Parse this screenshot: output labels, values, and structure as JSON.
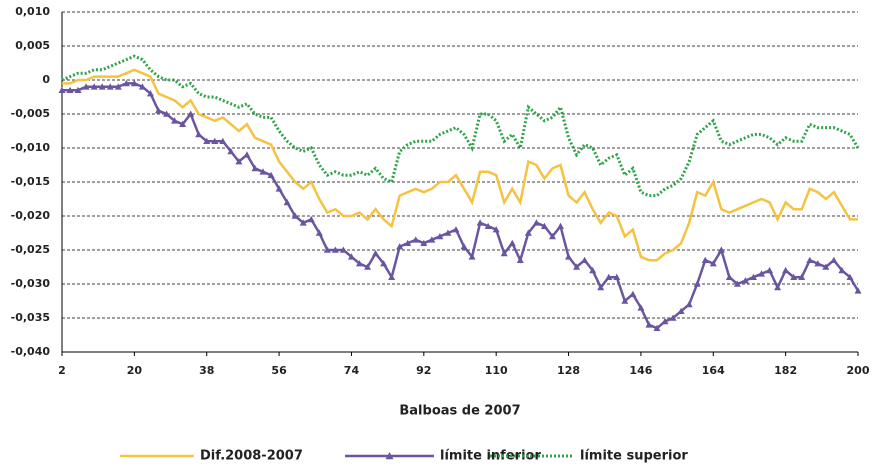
{
  "chart_data": {
    "type": "line",
    "xlabel": "Balboas de 2007",
    "x": [
      2,
      4,
      6,
      8,
      10,
      12,
      14,
      16,
      18,
      20,
      22,
      24,
      26,
      28,
      30,
      32,
      34,
      36,
      38,
      40,
      42,
      44,
      46,
      48,
      50,
      52,
      54,
      56,
      58,
      60,
      62,
      64,
      66,
      68,
      70,
      72,
      74,
      76,
      78,
      80,
      82,
      84,
      86,
      88,
      90,
      92,
      94,
      96,
      98,
      100,
      102,
      104,
      106,
      108,
      110,
      112,
      114,
      116,
      118,
      120,
      122,
      124,
      126,
      128,
      130,
      132,
      134,
      136,
      138,
      140,
      142,
      144,
      146,
      148,
      150,
      152,
      154,
      156,
      158,
      160,
      162,
      164,
      166,
      168,
      170,
      172,
      174,
      176,
      178,
      180,
      182,
      184,
      186,
      188,
      190,
      192,
      194,
      196,
      198,
      200
    ],
    "series": [
      {
        "name": "Dif.2008-2007",
        "color": "#f5c242",
        "style": "solid",
        "marker": "none",
        "values": [
          -0.0005,
          -0.0005,
          0,
          0,
          0.0005,
          0.0005,
          0.0005,
          0.0005,
          0.001,
          0.0015,
          0.001,
          0.0005,
          -0.002,
          -0.0025,
          -0.003,
          -0.004,
          -0.003,
          -0.005,
          -0.0055,
          -0.006,
          -0.0055,
          -0.0065,
          -0.0075,
          -0.0065,
          -0.0085,
          -0.009,
          -0.0095,
          -0.012,
          -0.0135,
          -0.015,
          -0.016,
          -0.015,
          -0.0175,
          -0.0195,
          -0.019,
          -0.02,
          -0.02,
          -0.0195,
          -0.0205,
          -0.019,
          -0.0205,
          -0.0215,
          -0.017,
          -0.0165,
          -0.016,
          -0.0165,
          -0.016,
          -0.015,
          -0.015,
          -0.014,
          -0.016,
          -0.018,
          -0.0135,
          -0.0135,
          -0.014,
          -0.018,
          -0.016,
          -0.018,
          -0.012,
          -0.0125,
          -0.0145,
          -0.013,
          -0.0125,
          -0.017,
          -0.018,
          -0.0165,
          -0.019,
          -0.021,
          -0.0195,
          -0.02,
          -0.023,
          -0.022,
          -0.026,
          -0.0265,
          -0.0265,
          -0.0255,
          -0.025,
          -0.024,
          -0.021,
          -0.0165,
          -0.017,
          -0.015,
          -0.019,
          -0.0195,
          -0.019,
          -0.0185,
          -0.018,
          -0.0175,
          -0.018,
          -0.0205,
          -0.018,
          -0.019,
          -0.019,
          -0.016,
          -0.0165,
          -0.0175,
          -0.0165,
          -0.0185,
          -0.0205,
          -0.0205
        ]
      },
      {
        "name": "límite inferior",
        "color": "#6a55a0",
        "style": "solid",
        "marker": "triangle",
        "values": [
          -0.0015,
          -0.0015,
          -0.0015,
          -0.001,
          -0.001,
          -0.001,
          -0.001,
          -0.001,
          -0.0005,
          -0.0005,
          -0.001,
          -0.002,
          -0.0045,
          -0.005,
          -0.006,
          -0.0065,
          -0.005,
          -0.008,
          -0.009,
          -0.009,
          -0.009,
          -0.0105,
          -0.012,
          -0.011,
          -0.013,
          -0.0135,
          -0.014,
          -0.016,
          -0.018,
          -0.02,
          -0.021,
          -0.0205,
          -0.0225,
          -0.025,
          -0.025,
          -0.025,
          -0.026,
          -0.027,
          -0.0275,
          -0.0255,
          -0.027,
          -0.029,
          -0.0245,
          -0.024,
          -0.0235,
          -0.024,
          -0.0235,
          -0.023,
          -0.0225,
          -0.022,
          -0.0245,
          -0.026,
          -0.021,
          -0.0215,
          -0.022,
          -0.0255,
          -0.024,
          -0.0265,
          -0.0225,
          -0.021,
          -0.0215,
          -0.023,
          -0.0215,
          -0.026,
          -0.0275,
          -0.0265,
          -0.028,
          -0.0305,
          -0.029,
          -0.029,
          -0.0325,
          -0.0315,
          -0.0335,
          -0.036,
          -0.0365,
          -0.0355,
          -0.035,
          -0.034,
          -0.033,
          -0.03,
          -0.0265,
          -0.027,
          -0.025,
          -0.029,
          -0.03,
          -0.0295,
          -0.029,
          -0.0285,
          -0.028,
          -0.0305,
          -0.028,
          -0.029,
          -0.029,
          -0.0265,
          -0.027,
          -0.0275,
          -0.0265,
          -0.028,
          -0.029,
          -0.031
        ]
      },
      {
        "name": "límite superior",
        "color": "#2ea44a",
        "style": "dotted",
        "marker": "none",
        "values": [
          0,
          0.0005,
          0.001,
          0.001,
          0.0015,
          0.0015,
          0.002,
          0.0025,
          0.003,
          0.0035,
          0.003,
          0.0015,
          0.0005,
          0,
          0,
          -0.001,
          -0.0005,
          -0.002,
          -0.0025,
          -0.0025,
          -0.003,
          -0.0035,
          -0.004,
          -0.0035,
          -0.005,
          -0.0055,
          -0.0055,
          -0.0075,
          -0.009,
          -0.01,
          -0.0105,
          -0.01,
          -0.0125,
          -0.014,
          -0.0135,
          -0.014,
          -0.014,
          -0.0135,
          -0.014,
          -0.013,
          -0.0145,
          -0.015,
          -0.0105,
          -0.0095,
          -0.009,
          -0.009,
          -0.009,
          -0.008,
          -0.0075,
          -0.007,
          -0.008,
          -0.01,
          -0.005,
          -0.005,
          -0.006,
          -0.009,
          -0.008,
          -0.01,
          -0.004,
          -0.005,
          -0.006,
          -0.0055,
          -0.004,
          -0.0085,
          -0.011,
          -0.0095,
          -0.01,
          -0.0125,
          -0.0115,
          -0.011,
          -0.014,
          -0.013,
          -0.0165,
          -0.017,
          -0.017,
          -0.016,
          -0.0155,
          -0.0145,
          -0.012,
          -0.008,
          -0.007,
          -0.006,
          -0.009,
          -0.0095,
          -0.009,
          -0.0085,
          -0.008,
          -0.008,
          -0.0085,
          -0.0095,
          -0.0085,
          -0.009,
          -0.009,
          -0.0065,
          -0.007,
          -0.007,
          -0.007,
          -0.0075,
          -0.008,
          -0.01
        ]
      }
    ],
    "xlim": [
      2,
      200
    ],
    "xticks": [
      2,
      20,
      38,
      56,
      74,
      92,
      110,
      128,
      146,
      164,
      182,
      200
    ],
    "ylim": [
      -0.04,
      0.01
    ],
    "yticks": [
      {
        "value": 0.01,
        "label": "0,010"
      },
      {
        "value": 0.005,
        "label": "0,005"
      },
      0,
      {
        "value": -0.005,
        "label": "-0,005"
      },
      {
        "value": -0.01,
        "label": "-0,010"
      },
      {
        "value": -0.015,
        "label": "-0,015"
      },
      {
        "value": -0.02,
        "label": "-0,020"
      },
      {
        "value": -0.025,
        "label": "-0,025"
      },
      {
        "value": -0.03,
        "label": "-0,030"
      },
      {
        "value": -0.035,
        "label": "-0,035"
      },
      {
        "value": -0.04,
        "label": "-0,040"
      }
    ],
    "grid": true
  }
}
